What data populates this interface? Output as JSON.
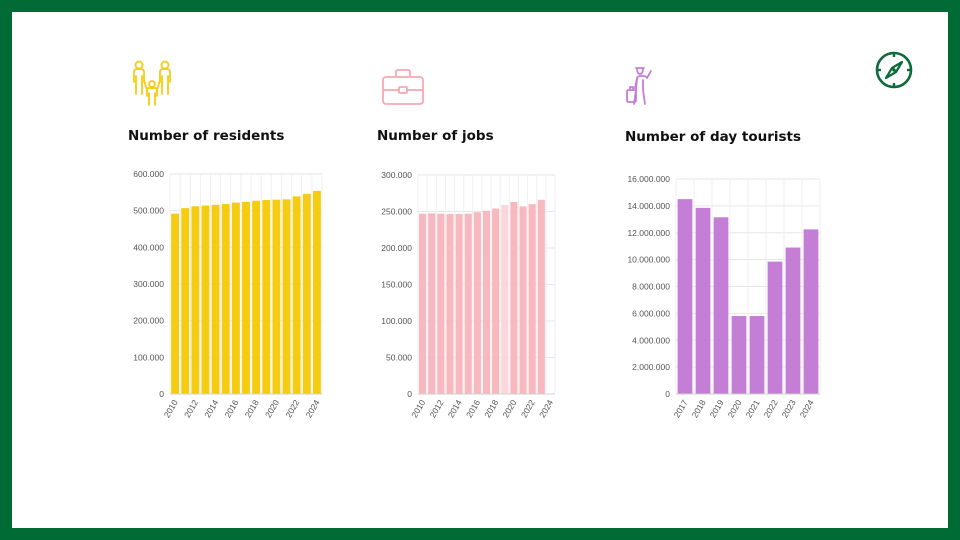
{
  "colors": {
    "frame": "#006b35",
    "residents": "#f5cc0f",
    "jobs": "#f7b8c0",
    "jobs_light": "#fbd7dc",
    "tourists": "#c57ed6",
    "compass": "#0c6b3a"
  },
  "icons": {
    "residents": "family-icon",
    "jobs": "briefcase-icon",
    "tourists": "traveler-icon",
    "corner": "compass-icon"
  },
  "chart_data": [
    {
      "type": "bar",
      "title": "Number of residents",
      "categories": [
        "2010",
        "2011",
        "2012",
        "2013",
        "2014",
        "2015",
        "2016",
        "2017",
        "2018",
        "2019",
        "2020",
        "2021",
        "2022",
        "2023",
        "2024"
      ],
      "tick_labels": [
        "2010",
        "2012",
        "2014",
        "2016",
        "2018",
        "2020",
        "2022",
        "2024"
      ],
      "values": [
        492000,
        507000,
        512000,
        514000,
        516000,
        518000,
        522000,
        524000,
        527000,
        529000,
        530000,
        531000,
        539000,
        546000,
        554000
      ],
      "ylim": [
        0,
        600000
      ],
      "yticks": [
        "0",
        "100.000",
        "200.000",
        "300.000",
        "400.000",
        "500.000",
        "600.000"
      ],
      "grid": true
    },
    {
      "type": "bar",
      "title": "Number of jobs",
      "categories": [
        "2010",
        "2011",
        "2012",
        "2013",
        "2014",
        "2015",
        "2016",
        "2017",
        "2018",
        "2019",
        "2020",
        "2021",
        "2022",
        "2023",
        "2024"
      ],
      "tick_labels": [
        "2010",
        "2012",
        "2014",
        "2016",
        "2018",
        "2020",
        "2022",
        "2024"
      ],
      "values": [
        247000,
        247500,
        247000,
        246500,
        246500,
        247000,
        249000,
        251000,
        254000,
        259000,
        263000,
        257000,
        260000,
        266000,
        0
      ],
      "ylim": [
        0,
        300000
      ],
      "yticks": [
        "0",
        "50.000",
        "100.000",
        "150.000",
        "200.000",
        "250.000",
        "300.000"
      ],
      "grid": true
    },
    {
      "type": "bar",
      "title": "Number of day tourists",
      "categories": [
        "2017",
        "2018",
        "2019",
        "2020",
        "2021",
        "2022",
        "2023",
        "2024"
      ],
      "tick_labels": [
        "2017",
        "2018",
        "2019",
        "2020",
        "2021",
        "2022",
        "2023",
        "2024"
      ],
      "values": [
        14500000,
        13850000,
        13150000,
        5800000,
        5800000,
        9850000,
        10900000,
        12250000
      ],
      "ylim": [
        0,
        16000000
      ],
      "yticks": [
        "0",
        "2.000.000",
        "4.000.000",
        "6.000.000",
        "8.000.000",
        "10.000.000",
        "12.000.000",
        "14.000.000",
        "16.000.000"
      ],
      "grid": true
    }
  ]
}
